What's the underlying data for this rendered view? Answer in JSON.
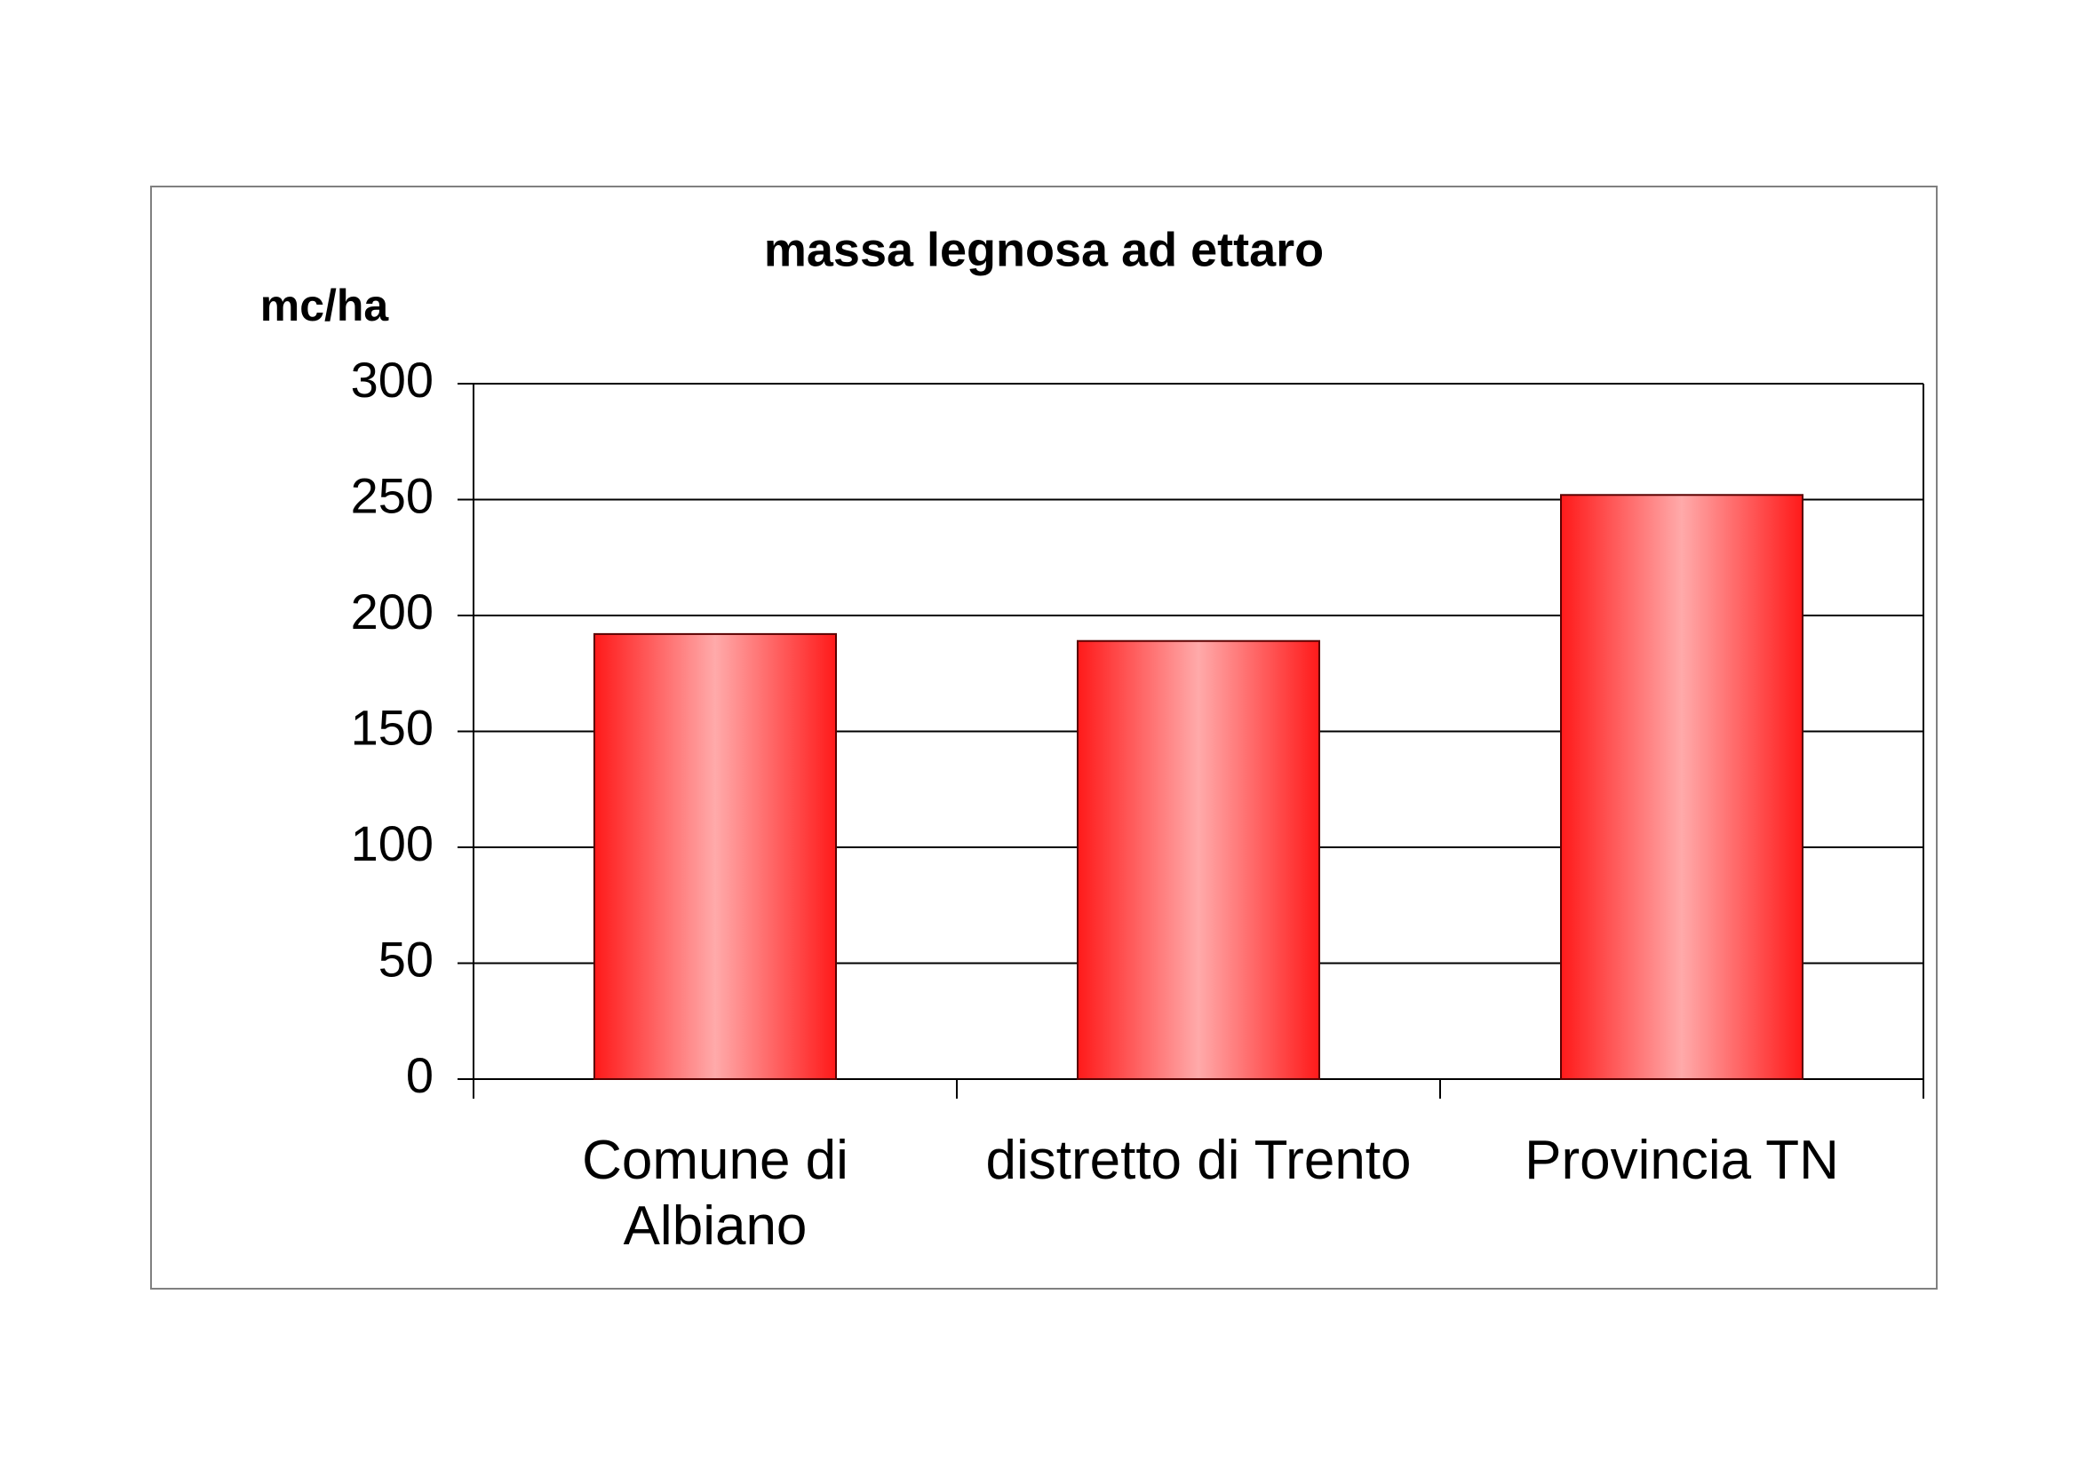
{
  "chart_data": {
    "type": "bar",
    "title": "massa legnosa ad ettaro",
    "y_label": "mc/ha",
    "categories": [
      "Comune di Albiano",
      "distretto di Trento",
      "Provincia TN"
    ],
    "values": [
      192,
      189,
      252
    ],
    "color": "#ff1a1a",
    "ylim": [
      0,
      300
    ],
    "yticks": [
      0,
      50,
      100,
      150,
      200,
      250,
      300
    ],
    "grid": true
  }
}
